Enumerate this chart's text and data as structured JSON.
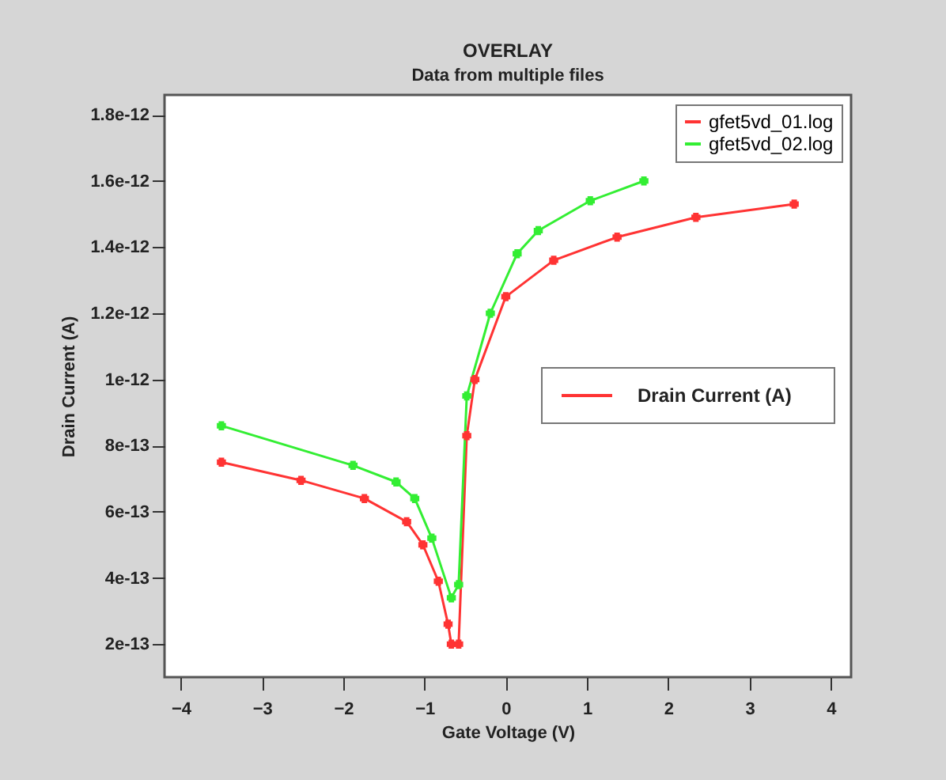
{
  "chart_data": {
    "type": "line",
    "title": "OVERLAY",
    "subtitle": "Data from multiple files",
    "xlabel": "Gate Voltage (V)",
    "ylabel": "Drain Current (A)",
    "xlim": [
      -4.2,
      4.25
    ],
    "xticks": [
      -4,
      -3,
      -2,
      -1,
      0,
      1,
      2,
      3,
      4
    ],
    "ylim": [
      1e-13,
      1.86e-12
    ],
    "yticks": [
      2e-13,
      4e-13,
      6e-13,
      8e-13,
      1e-12,
      1.2e-12,
      1.4e-12,
      1.6e-12,
      1.8e-12
    ],
    "legend": "top right",
    "marker": "cross",
    "grid": false,
    "annotations": [
      "Drain Current (A)"
    ],
    "series": [
      {
        "name": "gfet5vd_01.log",
        "color": "#ff3333",
        "x": [
          -3.5,
          -2.52,
          -1.74,
          -1.22,
          -1.02,
          -0.83,
          -0.71,
          -0.67,
          -0.58,
          -0.48,
          -0.38,
          0.0,
          0.59,
          1.37,
          2.34,
          3.55
        ],
        "values": [
          7.5e-13,
          6.95e-13,
          6.4e-13,
          5.7e-13,
          5e-13,
          3.9e-13,
          2.6e-13,
          2e-13,
          2e-13,
          8.3e-13,
          1e-12,
          1.25e-12,
          1.36e-12,
          1.43e-12,
          1.49e-12,
          1.53e-12
        ]
      },
      {
        "name": "gfet5vd_02.log",
        "color": "#33ee33",
        "x": [
          -3.5,
          -1.88,
          -1.35,
          -1.12,
          -0.91,
          -0.67,
          -0.58,
          -0.48,
          -0.19,
          0.14,
          0.4,
          1.04,
          1.7
        ],
        "values": [
          8.6e-13,
          7.4e-13,
          6.9e-13,
          6.4e-13,
          5.2e-13,
          3.4e-13,
          3.8e-13,
          9.5e-13,
          1.2e-12,
          1.38e-12,
          1.45e-12,
          1.54e-12,
          1.6e-12
        ]
      }
    ]
  }
}
